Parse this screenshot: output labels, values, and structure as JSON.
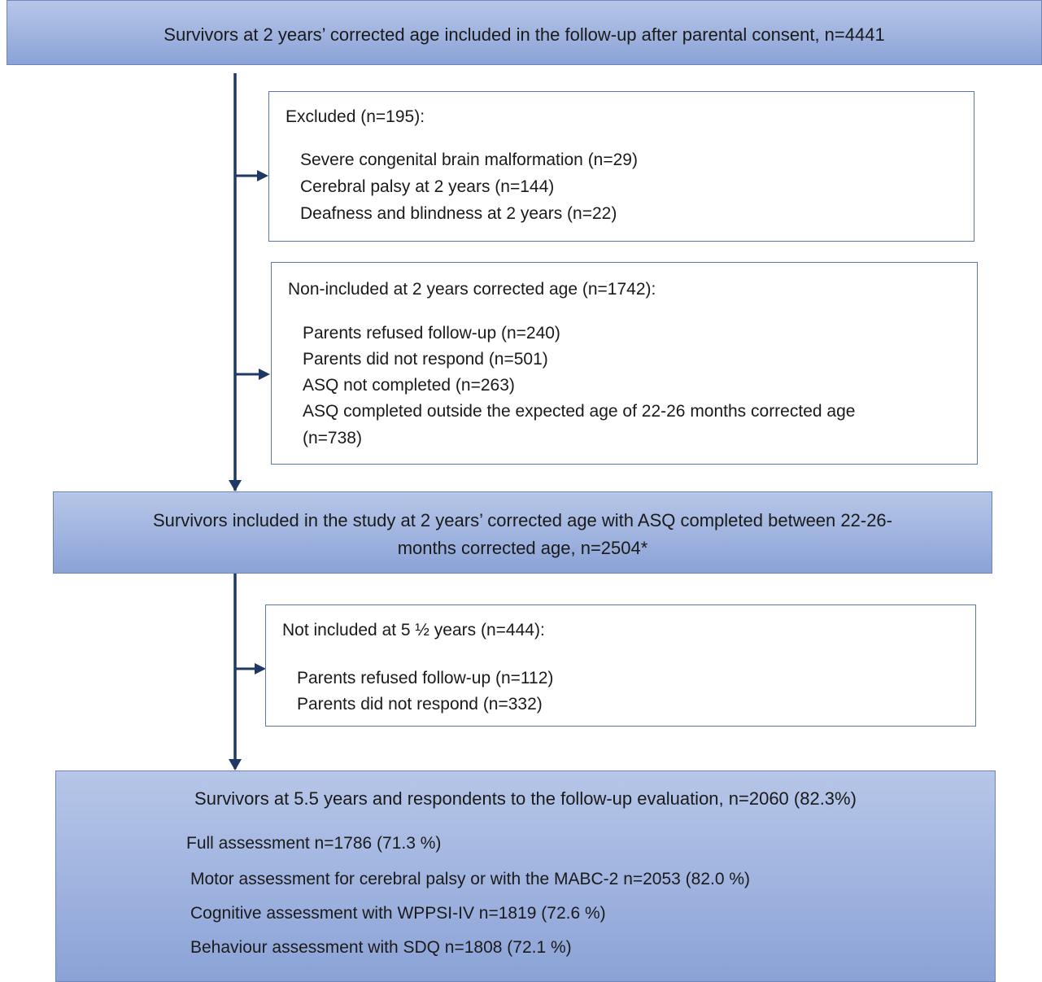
{
  "top_box": {
    "text": "Survivors at 2 years’ corrected age included in the follow-up after parental consent, n=4441"
  },
  "excluded_box": {
    "title": "Excluded (n=195):",
    "items": [
      "Severe congenital brain malformation (n=29)",
      "Cerebral palsy at 2 years (n=144)",
      "Deafness and blindness at 2 years (n=22)"
    ]
  },
  "non_included_box": {
    "title": "Non-included at 2 years corrected age (n=1742):",
    "items": [
      "Parents refused follow-up (n=240)",
      "Parents did not respond (n=501)",
      "ASQ not completed (n=263)",
      "ASQ completed outside the expected age of 22-26 months corrected age",
      "(n=738)"
    ]
  },
  "middle_box": {
    "line1": "Survivors included in the study at 2 years’ corrected age with ASQ completed between 22-26-",
    "line2": "months corrected age, n=2504*"
  },
  "not_included_5y_box": {
    "title": "Not included at 5 ½ years (n=444):",
    "items": [
      "Parents refused follow-up (n=112)",
      "Parents did not respond (n=332)"
    ]
  },
  "bottom_box": {
    "title": "Survivors at 5.5 years and respondents to the follow-up evaluation, n=2060 (82.3%)",
    "items": [
      "Full assessment n=1786 (71.3 %)",
      "Motor assessment for cerebral palsy or with the MABC-2 n=2053 (82.0 %)",
      "Cognitive assessment with WPPSI-IV n=1819 (72.6 %)",
      "Behaviour assessment with SDQ n=1808 (72.1 %)"
    ]
  },
  "colors": {
    "box_fill": "#9fb3df",
    "box_border": "#6f86bb",
    "arrow": "#1f3864"
  }
}
